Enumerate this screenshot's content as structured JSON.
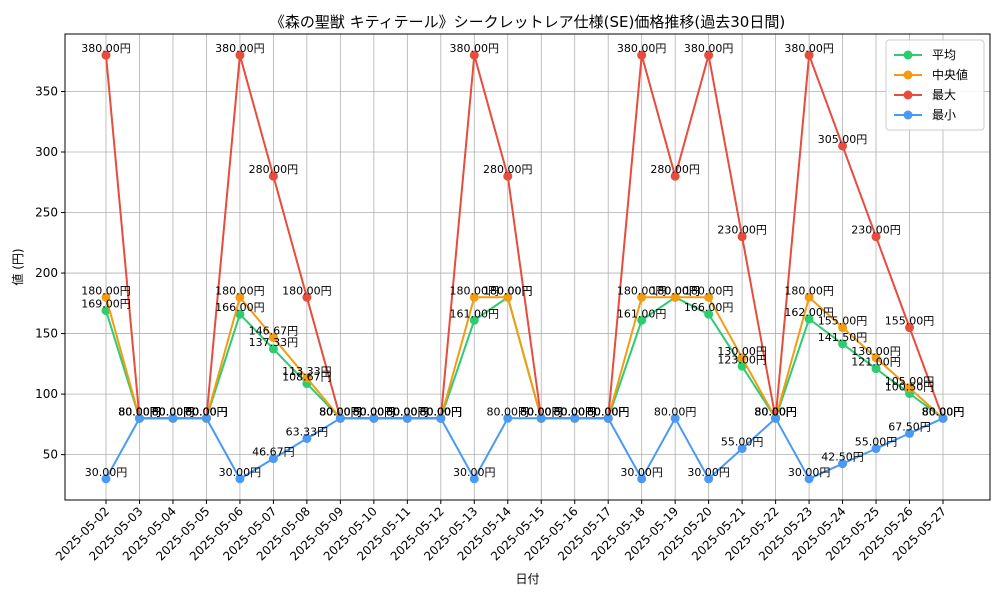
{
  "chart_data": {
    "type": "line",
    "title": "《森の聖獣 キティテール》シークレットレア仕様(SE)価格推移(過去30日間)",
    "xlabel": "日付",
    "ylabel": "値 (円)",
    "ylim": [
      12.5,
      397.5
    ],
    "yticks": [
      50,
      100,
      150,
      200,
      250,
      300,
      350
    ],
    "grid": true,
    "legend_position": "top-right",
    "categories": [
      "2025-05-02",
      "2025-05-03",
      "2025-05-04",
      "2025-05-05",
      "2025-05-06",
      "2025-05-07",
      "2025-05-08",
      "2025-05-09",
      "2025-05-10",
      "2025-05-11",
      "2025-05-12",
      "2025-05-13",
      "2025-05-14",
      "2025-05-15",
      "2025-05-16",
      "2025-05-17",
      "2025-05-18",
      "2025-05-19",
      "2025-05-20",
      "2025-05-21",
      "2025-05-22",
      "2025-05-23",
      "2025-05-24",
      "2025-05-25",
      "2025-05-26",
      "2025-05-27"
    ],
    "series": [
      {
        "name": "平均",
        "color": "#2ecc71",
        "values": [
          169,
          80,
          80,
          80,
          166,
          137.33,
          108.67,
          80,
          80,
          80,
          80,
          161,
          180,
          80,
          80,
          80,
          161,
          180,
          166,
          123,
          80,
          162,
          141.5,
          121,
          100.5,
          80
        ],
        "labels": [
          "169.00円",
          "80.00円",
          "80.00円",
          "80.00円",
          "166.00円",
          "137.33円",
          "108.67円",
          "80.00円",
          "80.00円",
          "80.00円",
          "80.00円",
          "161.00円",
          "180.00円",
          "80.00円",
          "80.00円",
          "80.00円",
          "161.00円",
          "180.00円",
          "166.00円",
          "123.00円",
          "80.00円",
          "162.00円",
          "141.50円",
          "121.00円",
          "100.50円",
          "80.00円"
        ]
      },
      {
        "name": "中央値",
        "color": "#f39c12",
        "values": [
          180,
          80,
          80,
          80,
          180,
          146.67,
          113.33,
          80,
          80,
          80,
          80,
          180,
          180,
          80,
          80,
          80,
          180,
          180,
          180,
          130,
          80,
          180,
          155,
          130,
          105,
          80
        ],
        "labels": [
          "180.00円",
          "80.00円",
          "80.00円",
          "80.00円",
          "180.00円",
          "146.67円",
          "113.33円",
          "80.00円",
          "80.00円",
          "80.00円",
          "80.00円",
          "180.00円",
          "180.00円",
          "80.00円",
          "80.00円",
          "80.00円",
          "180.00円",
          "180.00円",
          "180.00円",
          "130.00円",
          "80.00円",
          "180.00円",
          "155.00円",
          "130.00円",
          "105.00円",
          "80.00円"
        ]
      },
      {
        "name": "最大",
        "color": "#e74c3c",
        "values": [
          380,
          80,
          80,
          80,
          380,
          280,
          180,
          80,
          80,
          80,
          80,
          380,
          280,
          80,
          80,
          80,
          380,
          280,
          380,
          230,
          80,
          380,
          305,
          230,
          155,
          80
        ],
        "labels": [
          "380.00円",
          "80.00円",
          "80.00円",
          "80.00円",
          "380.00円",
          "280.00円",
          "180.00円",
          "80.00円",
          "80.00円",
          "80.00円",
          "80.00円",
          "380.00円",
          "280.00円",
          "80.00円",
          "80.00円",
          "80.00円",
          "380.00円",
          "280.00円",
          "380.00円",
          "230.00円",
          "80.00円",
          "380.00円",
          "305.00円",
          "230.00円",
          "155.00円",
          "80.00円"
        ]
      },
      {
        "name": "最小",
        "color": "#4a9af5",
        "values": [
          30,
          80,
          80,
          80,
          30,
          46.67,
          63.33,
          80,
          80,
          80,
          80,
          30,
          80,
          80,
          80,
          80,
          30,
          80,
          30,
          55,
          80,
          30,
          42.5,
          55,
          67.5,
          80
        ],
        "labels": [
          "30.00円",
          "80.00円",
          "80.00円",
          "80.00円",
          "30.00円",
          "46.67円",
          "63.33円",
          "80.00円",
          "80.00円",
          "80.00円",
          "80.00円",
          "30.00円",
          "80.00円",
          "80.00円",
          "80.00円",
          "80.00円",
          "30.00円",
          "80.00円",
          "30.00円",
          "55.00円",
          "80.00円",
          "30.00円",
          "42.50円",
          "55.00円",
          "67.50円",
          "80.00円"
        ]
      }
    ]
  }
}
